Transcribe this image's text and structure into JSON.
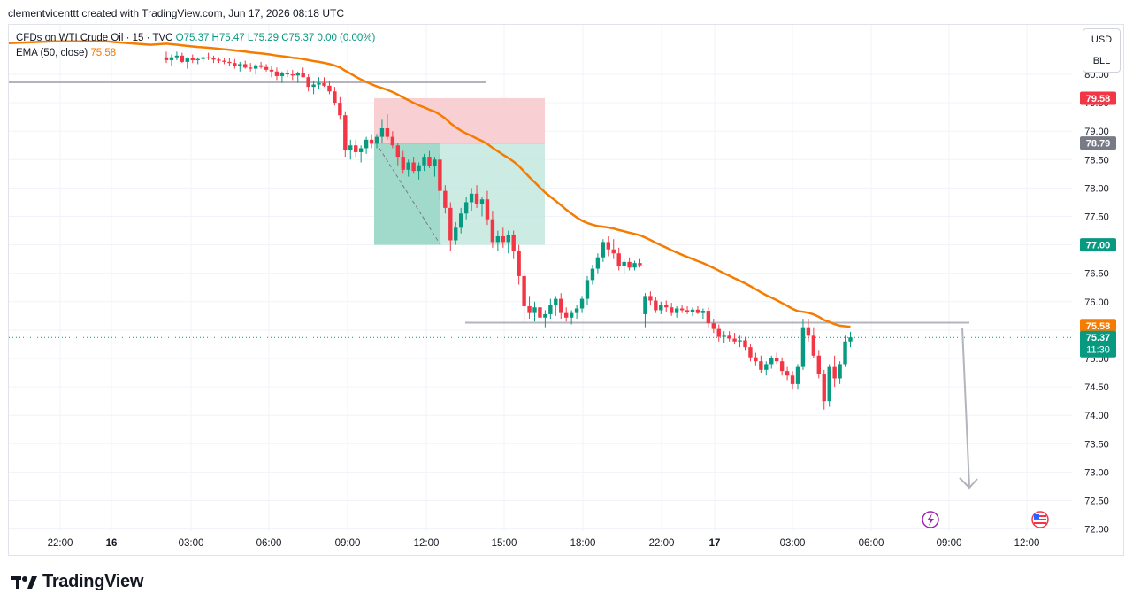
{
  "header": {
    "credit": "clementvicenttt created with TradingView.com, Jun 17, 2026 08:18 UTC"
  },
  "legend": {
    "symbol": "CFDs on WTI Crude Oil · 15 · TVC",
    "ohlc": "O75.37 H75.47 L75.29 C75.37 0.00 (0.00%)",
    "ema_label": "EMA (50, close)",
    "ema_value": "75.58"
  },
  "currency": {
    "primary": "USD",
    "secondary": "BLL"
  },
  "footer": {
    "brand": "TradingView"
  },
  "colors": {
    "up": "#089981",
    "down": "#f23645",
    "ema": "#f57c00",
    "stop_zone": "#f7c8cc",
    "target_zone": "#bfe6dc",
    "target_filled": "#8fd3c1",
    "level_line": "#b2b5be"
  },
  "chart_data": {
    "type": "candlestick",
    "title": "CFDs on WTI Crude Oil · 15 · TVC",
    "ylim": [
      71.9,
      80.6
    ],
    "yticks": [
      "72.00",
      "72.50",
      "73.00",
      "73.50",
      "74.00",
      "74.50",
      "75.00",
      "75.50",
      "76.00",
      "76.50",
      "77.00",
      "77.50",
      "78.00",
      "78.50",
      "79.00",
      "79.50",
      "80.00"
    ],
    "xticks": [
      {
        "label": "22:00",
        "bold": false
      },
      {
        "label": "16",
        "bold": true
      },
      {
        "label": "03:00",
        "bold": false
      },
      {
        "label": "06:00",
        "bold": false
      },
      {
        "label": "09:00",
        "bold": false
      },
      {
        "label": "12:00",
        "bold": false
      },
      {
        "label": "15:00",
        "bold": false
      },
      {
        "label": "18:00",
        "bold": false
      },
      {
        "label": "22:00",
        "bold": false
      },
      {
        "label": "17",
        "bold": true
      },
      {
        "label": "03:00",
        "bold": false
      },
      {
        "label": "06:00",
        "bold": false
      },
      {
        "label": "09:00",
        "bold": false
      },
      {
        "label": "12:00",
        "bold": false
      }
    ],
    "price_tags": [
      {
        "label": "79.58",
        "value": 79.58,
        "color": "#f23645"
      },
      {
        "label": "78.79",
        "value": 78.79,
        "color": "#787b86"
      },
      {
        "label": "77.00",
        "value": 77.0,
        "color": "#089981"
      },
      {
        "label": "75.58",
        "value": 75.58,
        "color": "#f57c00"
      },
      {
        "label": "75.37",
        "value": 75.37,
        "color": "#089981",
        "sub": "11:30"
      }
    ],
    "levels": [
      79.86,
      75.63
    ],
    "current_price": 75.37,
    "position": {
      "entry": 78.79,
      "stop": 79.58,
      "target": 77.0
    },
    "candles": [
      [
        80.3,
        80.4,
        80.2,
        80.25
      ],
      [
        80.25,
        80.35,
        80.15,
        80.3
      ],
      [
        80.3,
        80.4,
        80.25,
        80.33
      ],
      [
        80.33,
        80.38,
        80.2,
        80.22
      ],
      [
        80.22,
        80.3,
        80.1,
        80.28
      ],
      [
        80.28,
        80.35,
        80.2,
        80.25
      ],
      [
        80.25,
        80.3,
        80.18,
        80.27
      ],
      [
        80.27,
        80.32,
        80.22,
        80.3
      ],
      [
        80.3,
        80.38,
        80.25,
        80.28
      ],
      [
        80.28,
        80.33,
        80.2,
        80.26
      ],
      [
        80.26,
        80.3,
        80.2,
        80.24
      ],
      [
        80.24,
        80.28,
        80.18,
        80.22
      ],
      [
        80.22,
        80.28,
        80.15,
        80.2
      ],
      [
        80.2,
        80.27,
        80.1,
        80.14
      ],
      [
        80.14,
        80.22,
        80.05,
        80.18
      ],
      [
        80.18,
        80.24,
        80.1,
        80.12
      ],
      [
        80.12,
        80.2,
        80.05,
        80.1
      ],
      [
        80.1,
        80.18,
        80.0,
        80.16
      ],
      [
        80.16,
        80.22,
        80.1,
        80.13
      ],
      [
        80.13,
        80.18,
        80.05,
        80.08
      ],
      [
        80.08,
        80.15,
        79.95,
        80.05
      ],
      [
        80.05,
        80.12,
        79.9,
        79.97
      ],
      [
        79.97,
        80.05,
        79.85,
        80.02
      ],
      [
        80.02,
        80.08,
        79.95,
        80.0
      ],
      [
        80.0,
        80.08,
        79.9,
        79.98
      ],
      [
        79.98,
        80.05,
        79.85,
        80.03
      ],
      [
        80.03,
        80.12,
        79.95,
        79.95
      ],
      [
        79.95,
        80.0,
        79.7,
        79.78
      ],
      [
        79.78,
        79.88,
        79.65,
        79.82
      ],
      [
        79.82,
        79.95,
        79.75,
        79.85
      ],
      [
        79.85,
        79.95,
        79.78,
        79.8
      ],
      [
        79.8,
        79.88,
        79.65,
        79.7
      ],
      [
        79.7,
        79.78,
        79.45,
        79.5
      ],
      [
        79.5,
        79.6,
        79.2,
        79.28
      ],
      [
        79.28,
        79.35,
        78.55,
        78.66
      ],
      [
        78.66,
        78.85,
        78.5,
        78.75
      ],
      [
        78.75,
        78.85,
        78.55,
        78.63
      ],
      [
        78.63,
        78.75,
        78.45,
        78.7
      ],
      [
        78.7,
        78.9,
        78.6,
        78.85
      ],
      [
        78.85,
        78.95,
        78.7,
        78.78
      ],
      [
        78.78,
        78.95,
        78.7,
        78.9
      ],
      [
        78.9,
        79.2,
        78.8,
        79.05
      ],
      [
        79.05,
        79.3,
        78.85,
        78.9
      ],
      [
        78.9,
        79.0,
        78.7,
        78.75
      ],
      [
        78.75,
        78.8,
        78.4,
        78.55
      ],
      [
        78.55,
        78.65,
        78.25,
        78.32
      ],
      [
        78.32,
        78.5,
        78.2,
        78.45
      ],
      [
        78.45,
        78.55,
        78.25,
        78.3
      ],
      [
        78.3,
        78.45,
        78.15,
        78.4
      ],
      [
        78.4,
        78.6,
        78.3,
        78.55
      ],
      [
        78.55,
        78.65,
        78.35,
        78.38
      ],
      [
        78.38,
        78.55,
        78.2,
        78.5
      ],
      [
        78.5,
        78.6,
        77.8,
        77.95
      ],
      [
        77.95,
        78.05,
        77.55,
        77.65
      ],
      [
        77.65,
        77.75,
        76.9,
        77.08
      ],
      [
        77.08,
        77.4,
        77.0,
        77.3
      ],
      [
        77.3,
        77.65,
        77.2,
        77.55
      ],
      [
        77.55,
        77.85,
        77.45,
        77.75
      ],
      [
        77.75,
        78.0,
        77.6,
        77.9
      ],
      [
        77.9,
        78.05,
        77.65,
        77.72
      ],
      [
        77.72,
        77.85,
        77.5,
        77.8
      ],
      [
        77.8,
        77.95,
        77.35,
        77.45
      ],
      [
        77.45,
        77.6,
        76.95,
        77.05
      ],
      [
        77.05,
        77.25,
        76.9,
        77.15
      ],
      [
        77.15,
        77.3,
        76.95,
        77.05
      ],
      [
        77.05,
        77.25,
        76.85,
        77.18
      ],
      [
        77.18,
        77.25,
        76.75,
        76.9
      ],
      [
        76.9,
        77.0,
        76.3,
        76.45
      ],
      [
        76.45,
        76.55,
        75.65,
        75.92
      ],
      [
        75.92,
        76.1,
        75.7,
        75.8
      ],
      [
        75.8,
        76.0,
        75.65,
        75.9
      ],
      [
        75.9,
        76.0,
        75.6,
        75.72
      ],
      [
        75.72,
        75.85,
        75.55,
        75.78
      ],
      [
        75.78,
        76.05,
        75.7,
        75.95
      ],
      [
        75.95,
        76.1,
        75.75,
        76.05
      ],
      [
        76.05,
        76.15,
        75.7,
        75.8
      ],
      [
        75.8,
        75.9,
        75.65,
        75.72
      ],
      [
        75.72,
        75.85,
        75.6,
        75.8
      ],
      [
        75.8,
        75.95,
        75.7,
        75.88
      ],
      [
        75.88,
        76.1,
        75.8,
        76.05
      ],
      [
        76.05,
        76.45,
        75.95,
        76.38
      ],
      [
        76.38,
        76.65,
        76.3,
        76.58
      ],
      [
        76.58,
        76.85,
        76.5,
        76.78
      ],
      [
        76.78,
        77.1,
        76.7,
        77.05
      ],
      [
        77.05,
        77.15,
        76.8,
        76.92
      ],
      [
        76.92,
        77.1,
        76.75,
        76.85
      ],
      [
        76.85,
        76.95,
        76.55,
        76.62
      ],
      [
        76.62,
        76.75,
        76.5,
        76.7
      ],
      [
        76.7,
        76.78,
        76.55,
        76.6
      ],
      [
        76.6,
        76.72,
        76.55,
        76.68
      ],
      [
        76.68,
        76.75,
        76.6,
        76.64
      ],
      [
        75.78,
        76.15,
        75.55,
        76.1
      ],
      [
        76.1,
        76.18,
        75.95,
        76.02
      ],
      [
        76.02,
        76.08,
        75.8,
        75.85
      ],
      [
        75.85,
        76.0,
        75.78,
        75.95
      ],
      [
        75.95,
        76.02,
        75.82,
        75.9
      ],
      [
        75.9,
        75.98,
        75.75,
        75.8
      ],
      [
        75.8,
        75.92,
        75.72,
        75.88
      ],
      [
        75.88,
        75.95,
        75.8,
        75.85
      ],
      [
        75.85,
        75.92,
        75.78,
        75.82
      ],
      [
        75.82,
        75.9,
        75.75,
        75.86
      ],
      [
        75.86,
        75.92,
        75.78,
        75.8
      ],
      [
        75.8,
        75.88,
        75.7,
        75.84
      ],
      [
        75.84,
        75.9,
        75.55,
        75.62
      ],
      [
        75.62,
        75.7,
        75.45,
        75.52
      ],
      [
        75.52,
        75.6,
        75.3,
        75.38
      ],
      [
        75.38,
        75.48,
        75.28,
        75.4
      ],
      [
        75.4,
        75.48,
        75.3,
        75.35
      ],
      [
        75.35,
        75.45,
        75.25,
        75.3
      ],
      [
        75.3,
        75.4,
        75.2,
        75.32
      ],
      [
        75.32,
        75.38,
        75.15,
        75.2
      ],
      [
        75.2,
        75.25,
        74.95,
        75.02
      ],
      [
        75.02,
        75.1,
        74.88,
        74.95
      ],
      [
        74.95,
        75.05,
        74.75,
        74.8
      ],
      [
        74.8,
        74.95,
        74.7,
        74.9
      ],
      [
        74.9,
        75.05,
        74.82,
        75.0
      ],
      [
        75.0,
        75.1,
        74.9,
        74.95
      ],
      [
        74.95,
        75.02,
        74.7,
        74.78
      ],
      [
        74.78,
        74.85,
        74.62,
        74.7
      ],
      [
        74.7,
        74.78,
        74.45,
        74.55
      ],
      [
        74.55,
        74.9,
        74.45,
        74.85
      ],
      [
        74.85,
        75.7,
        74.8,
        75.55
      ],
      [
        75.55,
        75.7,
        75.3,
        75.4
      ],
      [
        75.4,
        75.55,
        75.0,
        75.05
      ],
      [
        75.05,
        75.15,
        74.65,
        74.72
      ],
      [
        74.72,
        74.8,
        74.1,
        74.25
      ],
      [
        74.25,
        74.9,
        74.15,
        74.85
      ],
      [
        74.85,
        75.05,
        74.5,
        74.65
      ],
      [
        74.65,
        74.95,
        74.55,
        74.9
      ],
      [
        74.9,
        75.4,
        74.85,
        75.3
      ],
      [
        75.3,
        75.47,
        75.2,
        75.37
      ]
    ]
  }
}
